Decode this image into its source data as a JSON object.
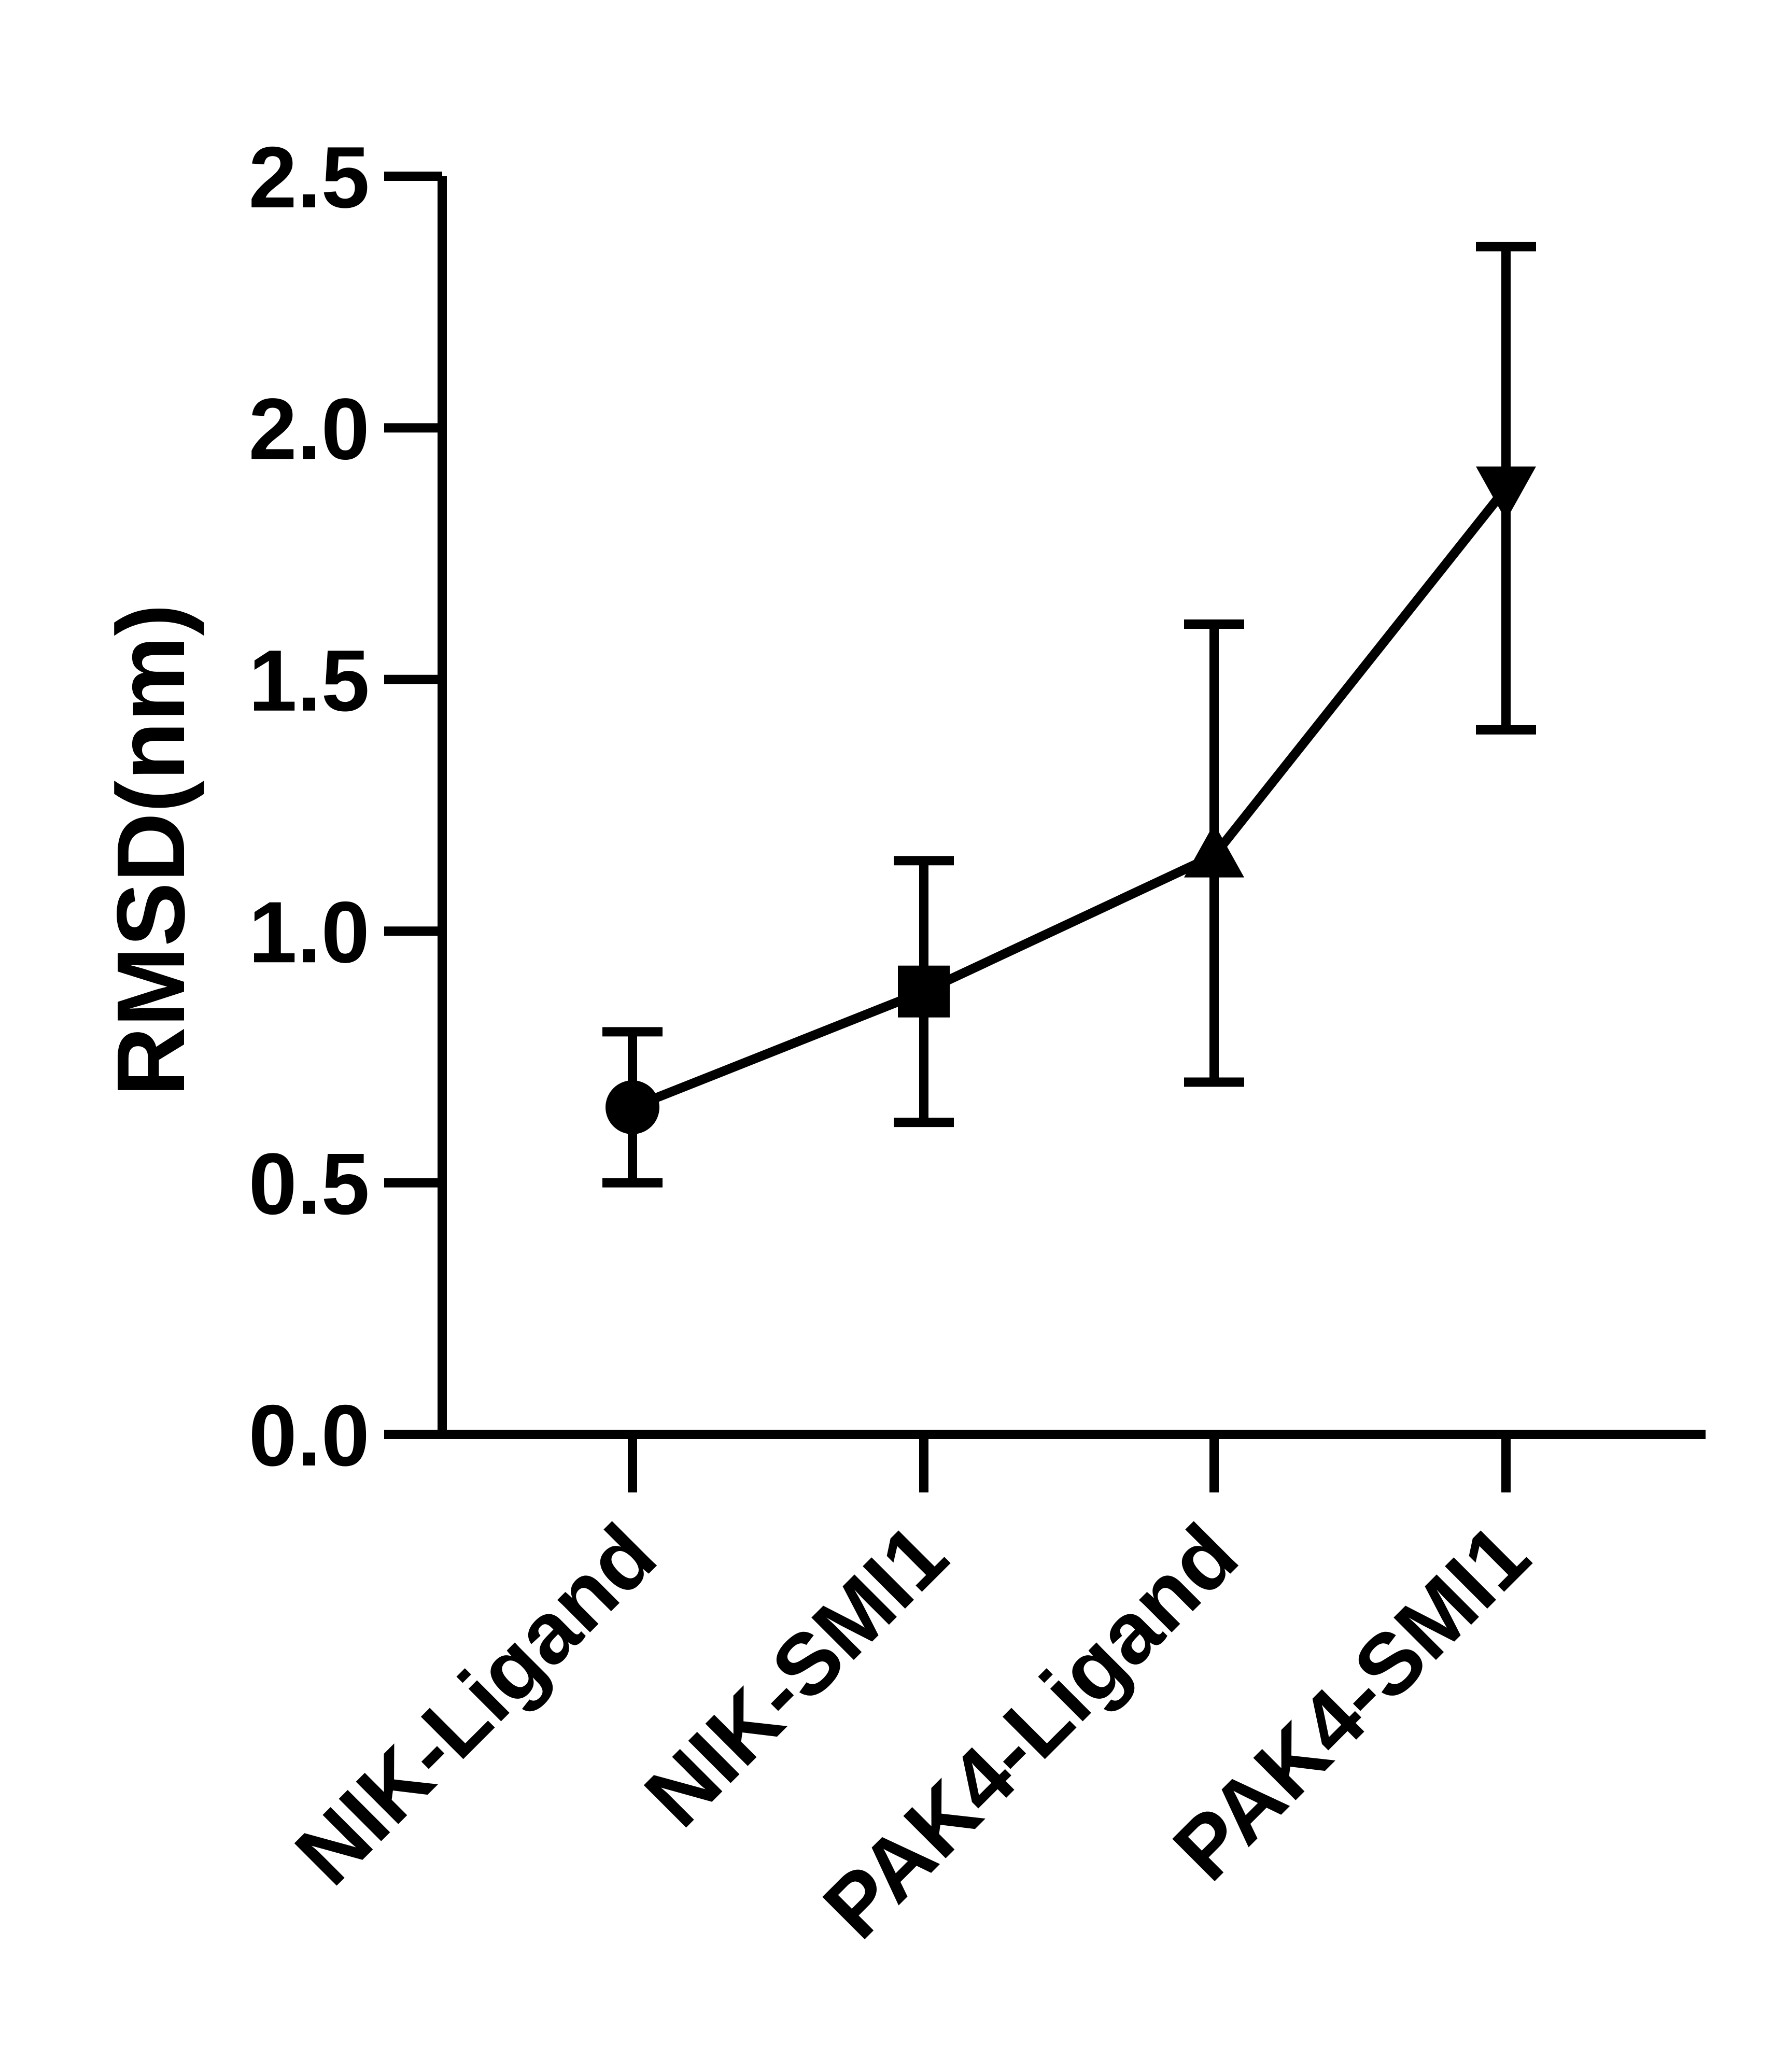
{
  "chart_data": {
    "type": "line",
    "title": "",
    "xlabel": "",
    "ylabel": "RMSD(nm)",
    "ylim": [
      0.0,
      2.5
    ],
    "yticks": [
      "0.0",
      "0.5",
      "1.0",
      "1.5",
      "2.0",
      "2.5"
    ],
    "ytick_values": [
      0.0,
      0.5,
      1.0,
      1.5,
      2.0,
      2.5
    ],
    "categories": [
      "NIK-Ligand",
      "NIK-SMI1",
      "PAK4-Ligand",
      "PAK4-SMI1"
    ],
    "series": [
      {
        "values": [
          0.65,
          0.88,
          1.15,
          1.88
        ],
        "error_low": [
          0.5,
          0.62,
          0.7,
          1.4
        ],
        "error_high": [
          0.8,
          1.14,
          1.61,
          2.36
        ],
        "markers": [
          "circle",
          "square",
          "triangle-up",
          "triangle-down"
        ],
        "color": "#000000"
      }
    ],
    "grid": false,
    "legend": "none"
  }
}
